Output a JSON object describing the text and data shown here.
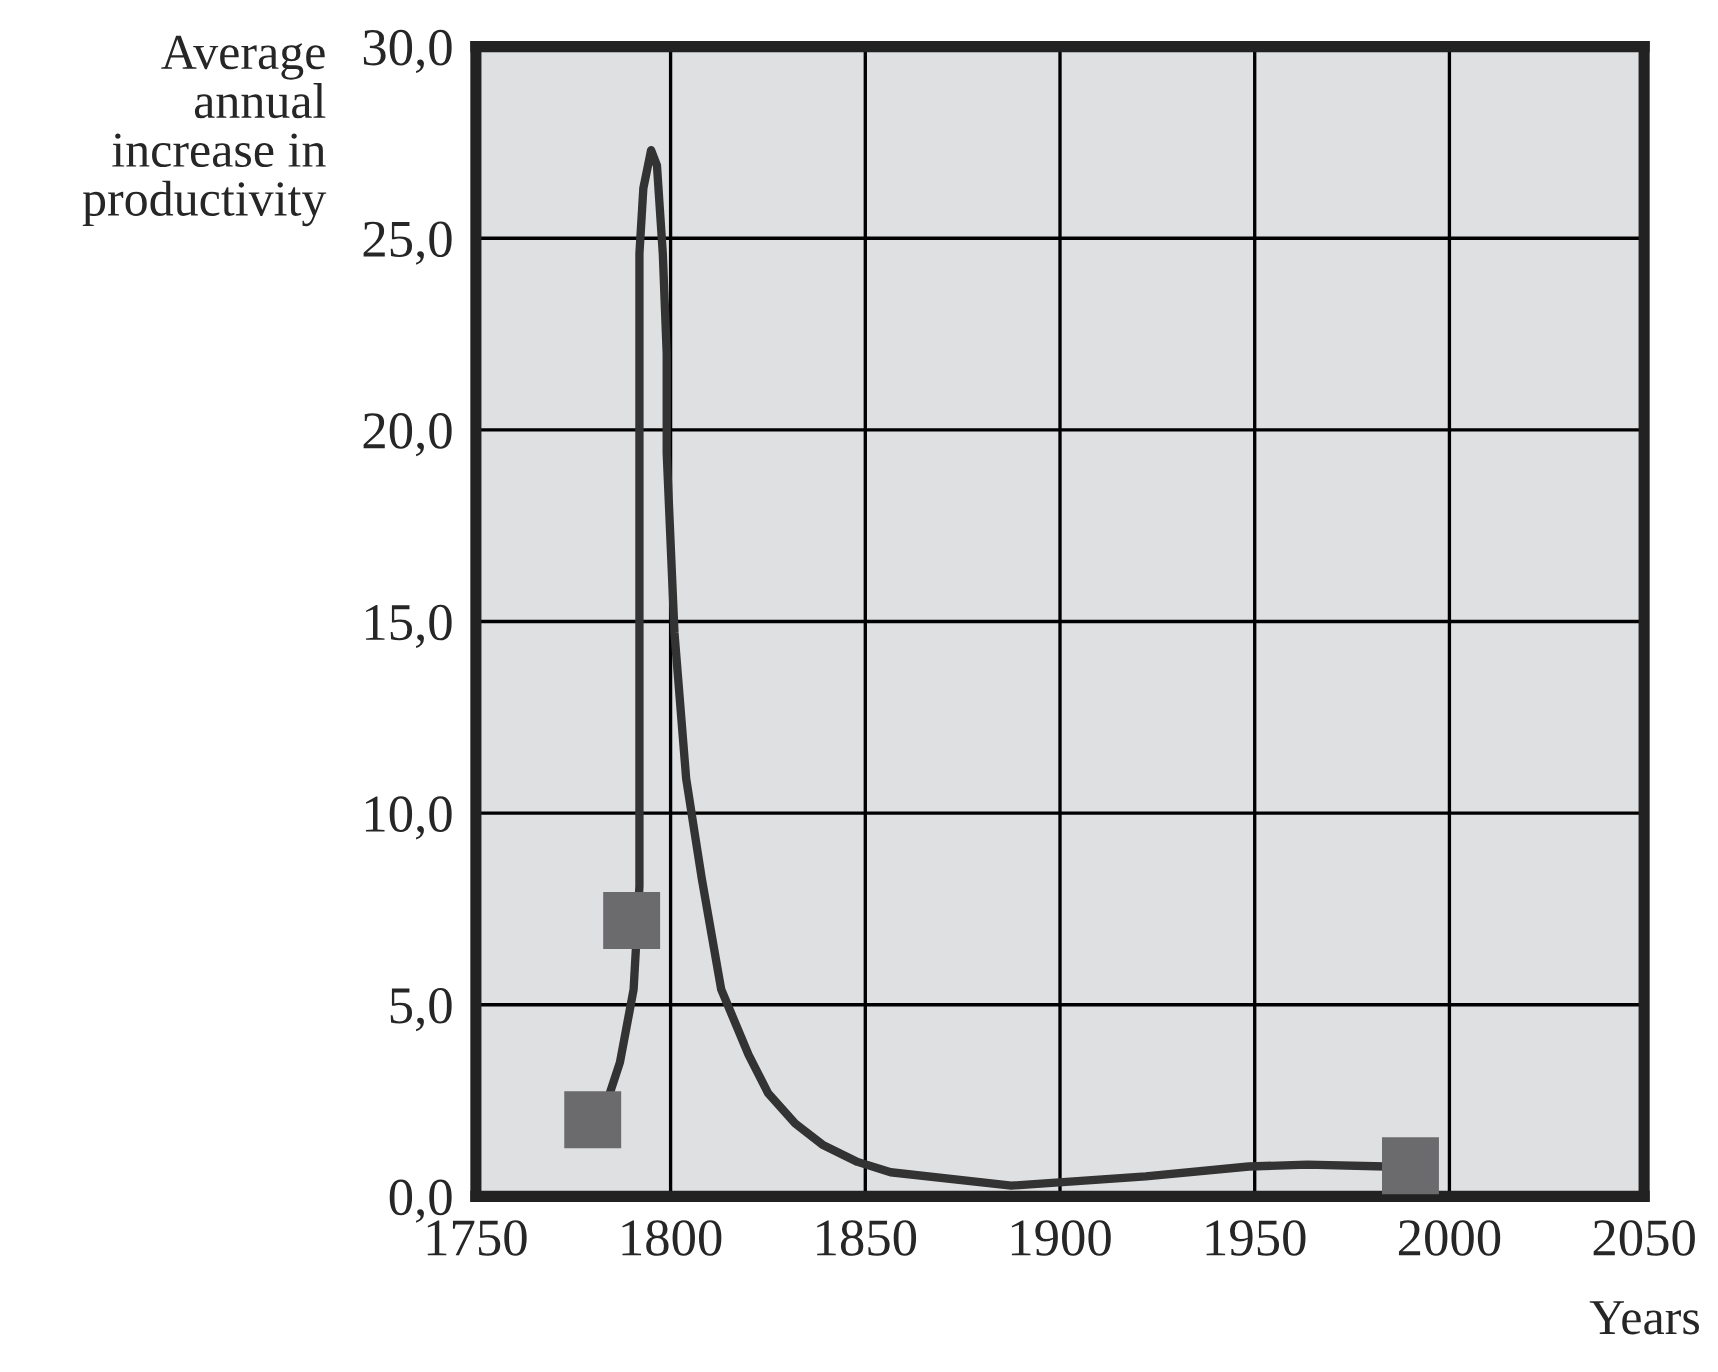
{
  "chart_data": {
    "type": "line",
    "ylabel": "Average\nannual\nincrease in\nproductivity",
    "xlabel": "Years",
    "xlim": [
      1750,
      2050
    ],
    "xticks": [
      1750,
      1800,
      1850,
      1900,
      1950,
      2000,
      2050
    ],
    "ylim": [
      0,
      30
    ],
    "yticks": [
      {
        "value": 0,
        "label": "0,0"
      },
      {
        "value": 5,
        "label": "5,0"
      },
      {
        "value": 10,
        "label": "10,0"
      },
      {
        "value": 15,
        "label": "15,0"
      },
      {
        "value": 20,
        "label": "20,0"
      },
      {
        "value": 25,
        "label": "25,0"
      },
      {
        "value": 30,
        "label": "30,0"
      }
    ],
    "grid": true,
    "series": [
      {
        "color": "#333333",
        "marker": "none",
        "line_style": "solid",
        "x": [
          1782,
          1787,
          1790.5,
          1792,
          1792,
          1792,
          1792,
          1793,
          1795,
          1796.5,
          1798,
          1799,
          1799,
          1801,
          1804,
          1808,
          1813,
          1820,
          1825,
          1832,
          1839,
          1848,
          1856.5,
          1887.5,
          1922,
          1948.5,
          1963.5,
          1983.7
        ],
        "values": [
          1.95,
          3.5,
          5.4,
          8.1,
          14.7,
          20.5,
          24.6,
          26.3,
          27.3,
          26.9,
          24.6,
          22.0,
          19.4,
          14.7,
          10.9,
          8.3,
          5.4,
          3.7,
          2.7,
          1.9,
          1.35,
          0.9,
          0.63,
          0.28,
          0.52,
          0.78,
          0.83,
          0.78
        ]
      },
      {
        "type": "scatter",
        "color": "#6b6b6e",
        "marker": "square",
        "x": [
          1780,
          1790,
          1990
        ],
        "values": [
          2.0,
          7.2,
          0.8
        ]
      }
    ]
  }
}
